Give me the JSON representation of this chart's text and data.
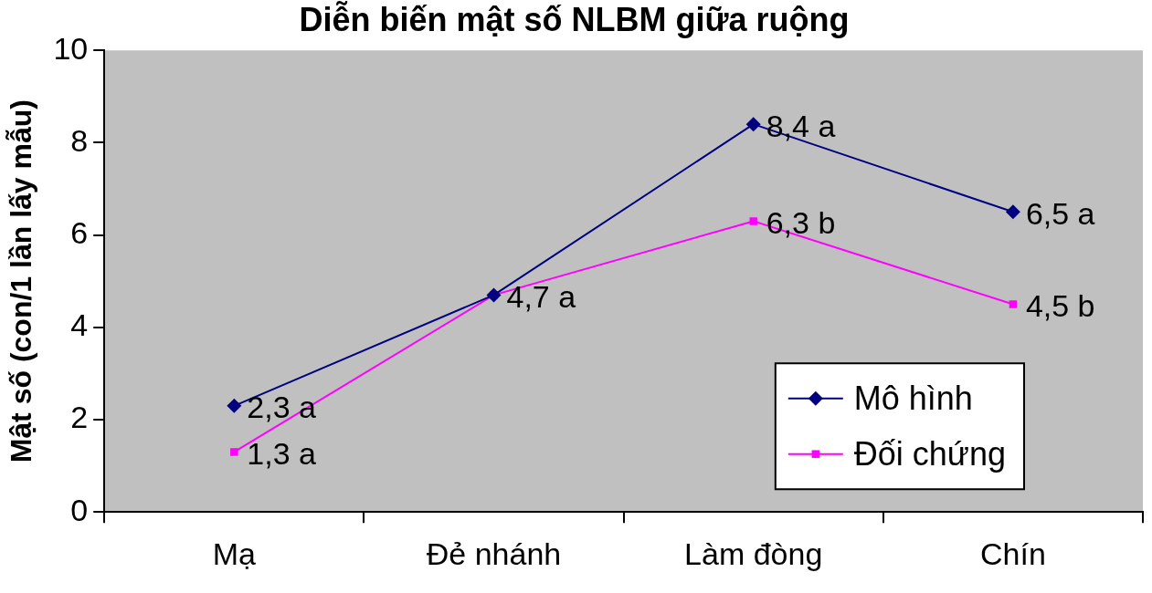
{
  "chart_data": {
    "type": "line",
    "title": "Diễn biến mật số NLBM giữa ruộng",
    "ylabel": "Mật số (con/1 lần lấy mẫu)",
    "categories": [
      "Mạ",
      "Đẻ nhánh",
      "Làm đòng",
      "Chín"
    ],
    "series": [
      {
        "name": "Mô hình",
        "color": "#000080",
        "marker": "diamond",
        "values": [
          2.3,
          4.7,
          8.4,
          6.5
        ],
        "value_labels": [
          "2,3 a",
          "4,7 a",
          "8,4 a",
          "6,5 a"
        ]
      },
      {
        "name": "Đối chứng",
        "color": "#ff00ff",
        "marker": "square",
        "values": [
          1.3,
          4.7,
          6.3,
          4.5
        ],
        "value_labels": [
          "1,3 a",
          null,
          "6,3 b",
          "4,5 b"
        ]
      }
    ],
    "ylim": [
      0,
      10
    ],
    "yticks": [
      0,
      2,
      4,
      6,
      8,
      10
    ],
    "legend": "bottom right"
  }
}
